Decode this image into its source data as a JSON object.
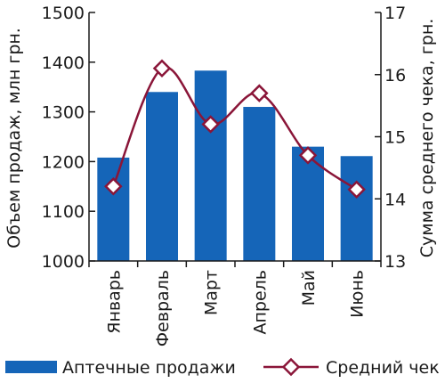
{
  "chart_data": {
    "type": "bar",
    "categories": [
      "Январь",
      "Февраль",
      "Март",
      "Апрель",
      "Май",
      "Июнь"
    ],
    "series": [
      {
        "name": "Аптечные продажи",
        "type": "bar",
        "axis": "left",
        "color": "#1565b8",
        "values": [
          1208,
          1340,
          1383,
          1310,
          1230,
          1211
        ]
      },
      {
        "name": "Средний чек",
        "type": "line",
        "axis": "right",
        "color": "#8a1538",
        "values": [
          14.2,
          16.1,
          15.2,
          15.7,
          14.7,
          14.15
        ]
      }
    ],
    "ylabel": "Объем продаж, млн грн.",
    "ylim": [
      1000,
      1500
    ],
    "yticks": [
      1000,
      1100,
      1200,
      1300,
      1400,
      1500
    ],
    "y2label": "Сумма среднего чека, грн.",
    "y2lim": [
      13,
      17
    ],
    "y2ticks": [
      13,
      14,
      15,
      16,
      17
    ],
    "grid": false,
    "legend_position": "bottom"
  }
}
